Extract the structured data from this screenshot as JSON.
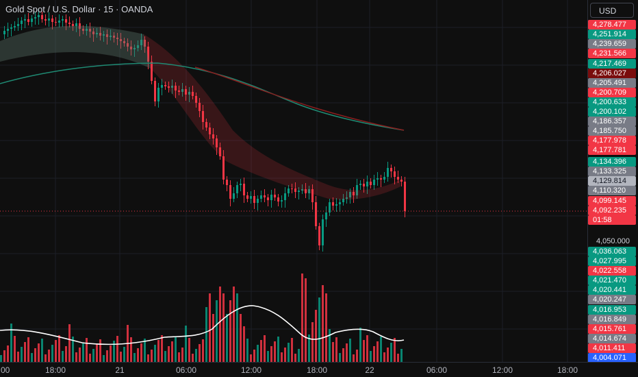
{
  "header": {
    "title": "Gold Spot / U.S. Dollar · 15 · OANDA"
  },
  "currency": {
    "label": "USD"
  },
  "price_labels": [
    {
      "text": "4,278.477",
      "color": "#f23645"
    },
    {
      "text": "4,251.914",
      "color": "#089981"
    },
    {
      "text": "4,239.659",
      "color": "#787b86"
    },
    {
      "text": "4,231.566",
      "color": "#f23645"
    },
    {
      "text": "4,217.469",
      "color": "#089981"
    },
    {
      "text": "4,206.027",
      "color": "#7a0c0c"
    },
    {
      "text": "4,205.491",
      "color": "#787b86"
    },
    {
      "text": "4,200.709",
      "color": "#f23645"
    },
    {
      "text": "4,200.633",
      "color": "#089981"
    },
    {
      "text": "4,200.102",
      "color": "#089981"
    },
    {
      "text": "4,186.357",
      "color": "#787b86"
    },
    {
      "text": "4,185.750",
      "color": "#787b86"
    },
    {
      "text": "4,177.978",
      "color": "#f23645"
    },
    {
      "text": "4,177.781",
      "color": "#f23645"
    },
    {
      "text": "4,134.396",
      "color": "#089981"
    },
    {
      "text": "4,133.325",
      "color": "#787b86"
    },
    {
      "text": "4,129.814",
      "color": "#b2b5be"
    },
    {
      "text": "4,110.320",
      "color": "#787b86"
    },
    {
      "text": "4,099.145",
      "color": "#f23645"
    },
    {
      "text": "4,092.235",
      "color": "#f23645"
    },
    {
      "text": "01:58",
      "color": "#f23645"
    },
    {
      "text": "4,050.000",
      "color": "plain"
    },
    {
      "text": "4,036.063",
      "color": "#089981"
    },
    {
      "text": "4,027.995",
      "color": "#089981"
    },
    {
      "text": "4,022.558",
      "color": "#f23645"
    },
    {
      "text": "4,021.470",
      "color": "#089981"
    },
    {
      "text": "4,020.441",
      "color": "#089981"
    },
    {
      "text": "4,020.247",
      "color": "#787b86"
    },
    {
      "text": "4,016.953",
      "color": "#089981"
    },
    {
      "text": "4,016.849",
      "color": "#787b86"
    },
    {
      "text": "4,015.761",
      "color": "#f23645"
    },
    {
      "text": "4,014.674",
      "color": "#787b86"
    },
    {
      "text": "4,011.411",
      "color": "#f23645"
    },
    {
      "text": "4,004.071",
      "color": "#2962ff"
    }
  ],
  "time_labels": [
    ":00",
    "18:00",
    "21",
    "06:00",
    "12:00",
    "18:00",
    "22",
    "06:00",
    "12:00",
    "18:00"
  ],
  "chart_data": {
    "type": "candlestick",
    "symbol": "Gold Spot / U.S. Dollar",
    "interval": "15",
    "source": "OANDA",
    "current_price": 4092.235,
    "countdown": "01:58",
    "colors": {
      "up": "#089981",
      "down": "#f23645",
      "volume_ma": "#ffffff",
      "ma_long": "#7a1f1f",
      "ma_long_early": "#1f8a73"
    }
  }
}
